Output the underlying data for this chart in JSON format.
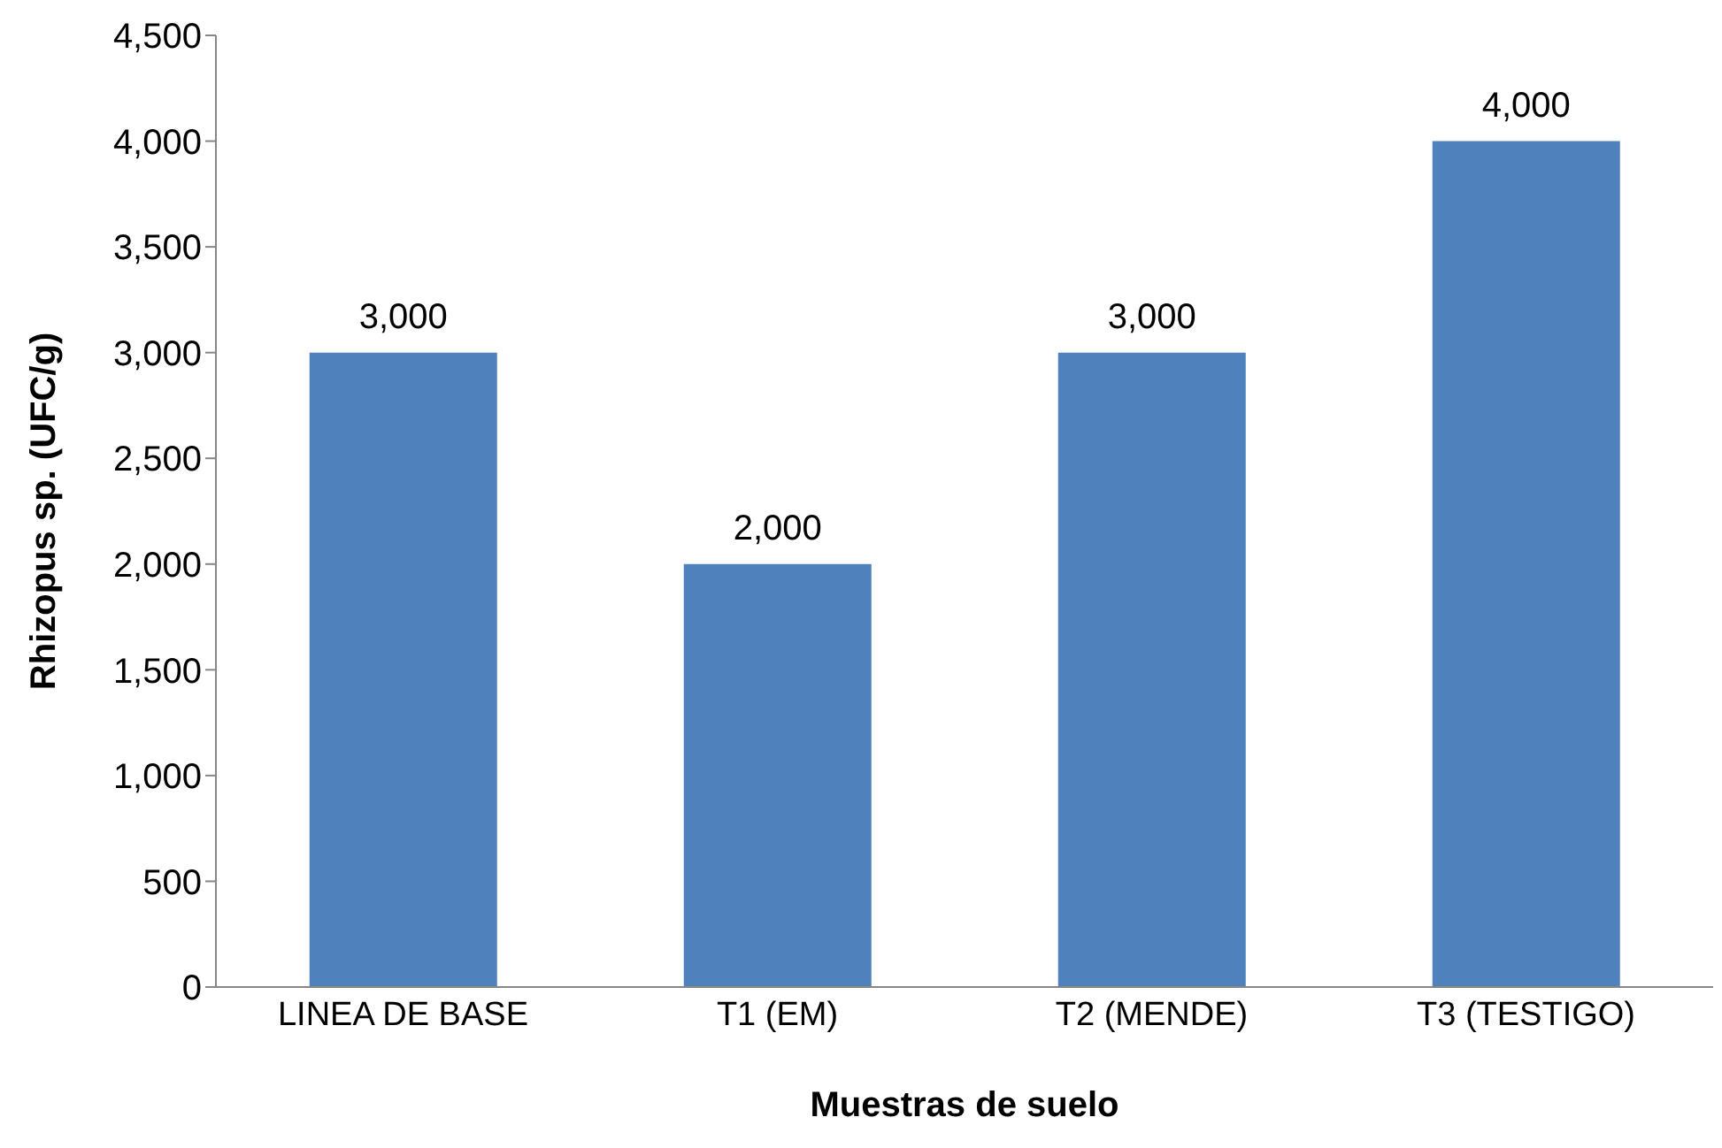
{
  "chart_data": {
    "type": "bar",
    "xlabel": "Muestras de suelo",
    "ylabel": "Rhizopus sp. (UFC/g)",
    "categories": [
      "LINEA DE BASE",
      "T1 (EM)",
      "T2 (MENDE)",
      "T3 (TESTIGO)"
    ],
    "values": [
      3000,
      2000,
      3000,
      4000
    ],
    "color": "#4f81bd",
    "value_labels": [
      "3,000",
      "2,000",
      "3,000",
      "4,000"
    ],
    "ylim": [
      0,
      4500
    ],
    "yticks": [
      {
        "value": 0,
        "label": "0"
      },
      {
        "value": 500,
        "label": "500"
      },
      {
        "value": 1000,
        "label": "1,000"
      },
      {
        "value": 1500,
        "label": "1,500"
      },
      {
        "value": 2000,
        "label": "2,000"
      },
      {
        "value": 2500,
        "label": "2,500"
      },
      {
        "value": 3000,
        "label": "3,000"
      },
      {
        "value": 3500,
        "label": "3,500"
      },
      {
        "value": 4000,
        "label": "4,000"
      },
      {
        "value": 4500,
        "label": "4,500"
      }
    ],
    "grid": false,
    "legend": false
  }
}
